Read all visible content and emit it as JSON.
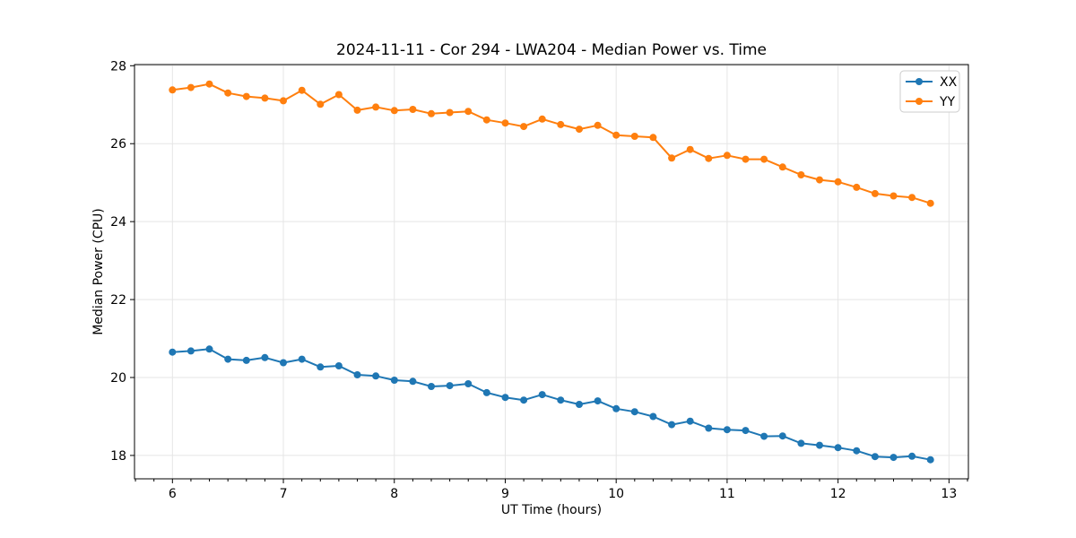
{
  "figure": {
    "title": "2024-11-11 - Cor 294 - LWA204 - Median Power vs. Time",
    "xlabel": "UT Time (hours)",
    "ylabel": "Median Power (CPU)"
  },
  "chart_data": {
    "type": "line",
    "title": "2024-11-11 - Cor 294 - LWA204 - Median Power vs. Time",
    "xlabel": "UT Time (hours)",
    "ylabel": "Median Power (CPU)",
    "xlim": [
      5.658,
      13.175
    ],
    "ylim": [
      17.4,
      28.03
    ],
    "x_ticks": [
      6,
      7,
      8,
      9,
      10,
      11,
      12,
      13
    ],
    "y_ticks": [
      18,
      20,
      22,
      24,
      26,
      28
    ],
    "x_minor_step": 0.1666667,
    "x_minor_per_major": 6,
    "grid": true,
    "legend_position": "upper right",
    "marker": "circle",
    "x": [
      6.0,
      6.1667,
      6.3333,
      6.5,
      6.6667,
      6.8333,
      7.0,
      7.1667,
      7.3333,
      7.5,
      7.6667,
      7.8333,
      8.0,
      8.1667,
      8.3333,
      8.5,
      8.6667,
      8.8333,
      9.0,
      9.1667,
      9.3333,
      9.5,
      9.6667,
      9.8333,
      10.0,
      10.1667,
      10.3333,
      10.5,
      10.6667,
      10.8333,
      11.0,
      11.1667,
      11.3333,
      11.5,
      11.6667,
      11.8333,
      12.0,
      12.1667,
      12.3333,
      12.5,
      12.6667,
      12.8333
    ],
    "series": [
      {
        "name": "XX",
        "color": "#1f77b4",
        "values": [
          20.65,
          20.68,
          20.73,
          20.47,
          20.44,
          20.51,
          20.38,
          20.47,
          20.27,
          20.3,
          20.07,
          20.04,
          19.93,
          19.9,
          19.77,
          19.79,
          19.84,
          19.61,
          19.49,
          19.42,
          19.56,
          19.42,
          19.31,
          19.4,
          19.2,
          19.12,
          19.0,
          18.79,
          18.88,
          18.7,
          18.66,
          18.64,
          18.49,
          18.5,
          18.31,
          18.26,
          18.2,
          18.12,
          17.97,
          17.95,
          17.98,
          17.89
        ]
      },
      {
        "name": "YY",
        "color": "#ff7f0e",
        "values": [
          27.38,
          27.44,
          27.53,
          27.3,
          27.21,
          27.17,
          27.1,
          27.37,
          27.01,
          27.26,
          26.86,
          26.94,
          26.85,
          26.88,
          26.77,
          26.8,
          26.83,
          26.61,
          26.53,
          26.44,
          26.63,
          26.49,
          26.37,
          26.47,
          26.22,
          26.19,
          26.16,
          25.63,
          25.85,
          25.62,
          25.7,
          25.6,
          25.6,
          25.4,
          25.2,
          25.07,
          25.02,
          24.88,
          24.72,
          24.66,
          24.62,
          24.47
        ]
      }
    ]
  },
  "style": {
    "background": "#ffffff",
    "axis_color": "#000000",
    "grid_color": "#e5e5e5",
    "legend_border": "#cccccc",
    "legend_background": "#ffffff"
  }
}
